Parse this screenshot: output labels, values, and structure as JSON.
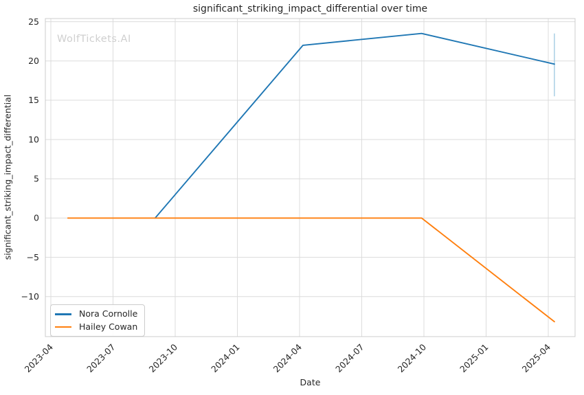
{
  "watermark": "WolfTickets.AI",
  "colors": {
    "background": "#ffffff",
    "grid": "#dcdcdc",
    "spine": "#cccccc",
    "text": "#262626",
    "watermark": "#cfcfcf",
    "series_blue": "#1f77b4",
    "series_orange": "#ff7f0e",
    "error_bar": "#aed1e6"
  },
  "legend": {
    "items": [
      {
        "label": "Nora Cornolle",
        "color": "#1f77b4"
      },
      {
        "label": "Hailey Cowan",
        "color": "#ff7f0e"
      }
    ]
  },
  "chart_data": {
    "type": "line",
    "title": "significant_striking_impact_differential over time",
    "xlabel": "Date",
    "ylabel": "significant_striking_impact_differential",
    "grid": true,
    "legend_position": "lower left",
    "x_ticks": [
      "2023-04",
      "2023-07",
      "2023-10",
      "2024-01",
      "2024-04",
      "2024-07",
      "2024-10",
      "2025-01",
      "2025-04"
    ],
    "y_ticks": [
      -10,
      -5,
      0,
      5,
      10,
      15,
      20,
      25
    ],
    "ylim": [
      -15.1,
      25.4
    ],
    "series": [
      {
        "name": "Nora Cornolle",
        "color": "#1f77b4",
        "points": [
          {
            "date": "2023-09-02",
            "value": 0
          },
          {
            "date": "2024-04-06",
            "value": 22.0
          },
          {
            "date": "2024-09-28",
            "value": 23.5
          },
          {
            "date": "2025-04-10",
            "value": 19.6
          }
        ],
        "error_bar": {
          "date": "2025-04-10",
          "low": 15.5,
          "high": 23.5
        }
      },
      {
        "name": "Hailey Cowan",
        "color": "#ff7f0e",
        "points": [
          {
            "date": "2023-04-26",
            "value": 0
          },
          {
            "date": "2024-09-28",
            "value": 0
          },
          {
            "date": "2025-04-10",
            "value": -13.2
          }
        ]
      }
    ]
  }
}
